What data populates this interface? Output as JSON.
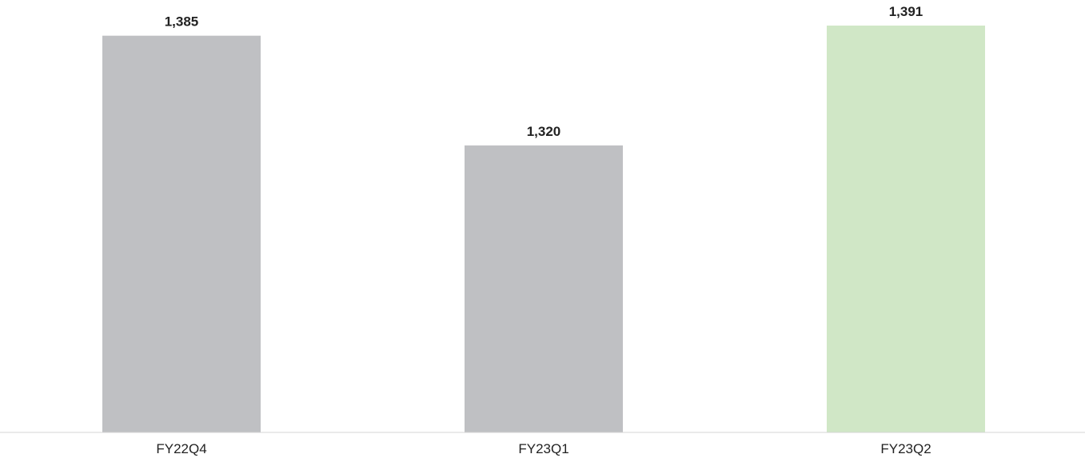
{
  "chart_data": {
    "type": "bar",
    "categories": [
      "FY22Q4",
      "FY23Q1",
      "FY23Q2"
    ],
    "values": [
      1385,
      1320,
      1391
    ],
    "value_labels": [
      "1,385",
      "1,320",
      "1,391"
    ],
    "colors": [
      "#bfc0c3",
      "#bfc0c3",
      "#d0e7c6"
    ],
    "title": "",
    "xlabel": "",
    "ylabel": "",
    "ylim": [
      1150,
      1400
    ],
    "grid": false,
    "legend": "none"
  }
}
